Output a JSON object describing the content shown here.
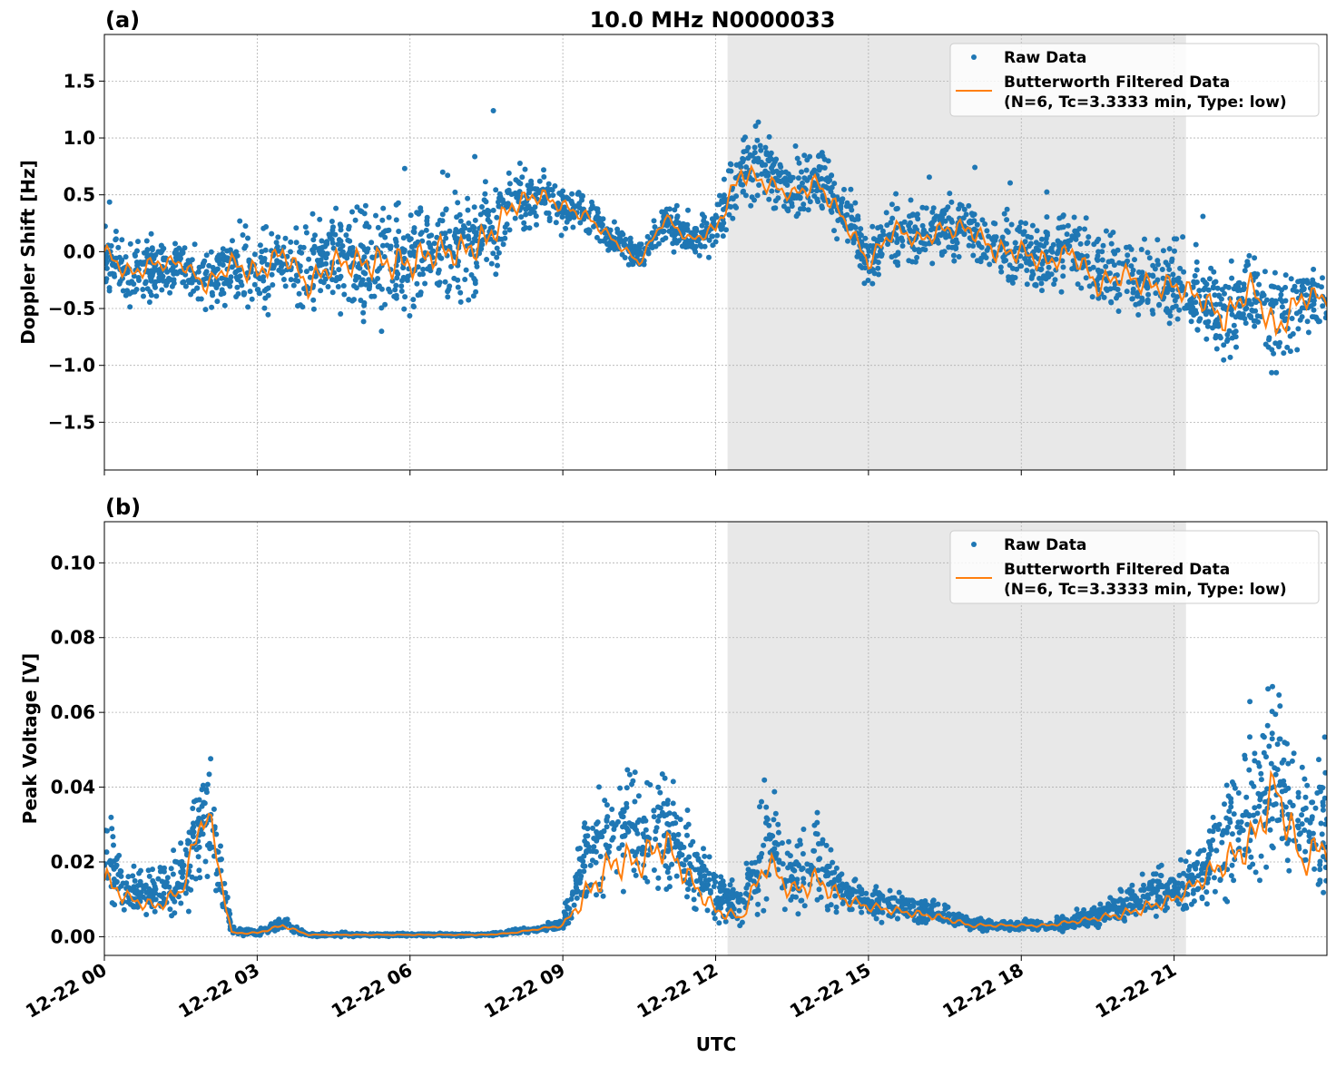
{
  "title": "10.0 MHz N0000033",
  "xlabel": "UTC",
  "x_ticks": [
    "12-22 00",
    "12-22 03",
    "12-22 06",
    "12-22 09",
    "12-22 12",
    "12-22 15",
    "12-22 18",
    "12-22 21"
  ],
  "x_range": [
    "12-22 00:00",
    "12-23 00:00"
  ],
  "shaded_interval": [
    "12-22 12:14",
    "12-22 21:14"
  ],
  "colors": {
    "raw": "#1f77b4",
    "filtered": "#ff7f0e",
    "shade": "#e8e8e8",
    "grid": "#b0b0b0"
  },
  "legend": {
    "raw": "Raw Data",
    "filtered_line1": "Butterworth Filtered Data",
    "filtered_line2": "(N=6, Tc=3.3333 min, Type: low)",
    "placement": "top-right"
  },
  "chart_data": [
    {
      "type": "scatter",
      "panel_label": "(a)",
      "ylabel": "Doppler Shift [Hz]",
      "ylim": [
        -1.92,
        1.91
      ],
      "y_ticks": [
        "−1.5",
        "−1.0",
        "−0.5",
        "0.0",
        "0.5",
        "1.0",
        "1.5"
      ],
      "y_tick_values": [
        -1.5,
        -1.0,
        -0.5,
        0.0,
        0.5,
        1.0,
        1.5
      ],
      "grid": true,
      "time": [
        "00:00",
        "00:30",
        "01:00",
        "01:30",
        "02:00",
        "02:30",
        "03:00",
        "03:30",
        "04:00",
        "04:30",
        "05:00",
        "05:30",
        "06:00",
        "06:30",
        "07:00",
        "07:30",
        "08:00",
        "08:30",
        "09:00",
        "09:30",
        "10:00",
        "10:30",
        "11:00",
        "11:30",
        "12:00",
        "12:30",
        "13:00",
        "13:30",
        "14:00",
        "14:30",
        "15:00",
        "15:30",
        "16:00",
        "16:30",
        "17:00",
        "17:30",
        "18:00",
        "18:30",
        "19:00",
        "19:30",
        "20:00",
        "20:30",
        "21:00",
        "21:30",
        "22:00",
        "22:30",
        "23:00",
        "23:30",
        "24:00"
      ],
      "series": [
        {
          "name": "Butterworth Filtered Data",
          "kind": "line",
          "values": [
            0.0,
            -0.2,
            -0.1,
            -0.1,
            -0.3,
            -0.1,
            -0.2,
            0.0,
            -0.3,
            -0.1,
            -0.1,
            -0.1,
            -0.1,
            0.0,
            0.0,
            0.1,
            0.4,
            0.5,
            0.4,
            0.3,
            0.1,
            -0.1,
            0.3,
            0.1,
            0.2,
            0.7,
            0.6,
            0.5,
            0.6,
            0.3,
            -0.1,
            0.2,
            0.1,
            0.2,
            0.2,
            0.0,
            0.0,
            -0.1,
            0.0,
            -0.3,
            -0.2,
            -0.3,
            -0.3,
            -0.4,
            -0.6,
            -0.3,
            -0.7,
            -0.4,
            -0.4
          ]
        },
        {
          "name": "Raw Data",
          "kind": "scatter-band",
          "low": [
            -0.4,
            -0.6,
            -0.5,
            -0.4,
            -0.6,
            -0.5,
            -0.8,
            -0.5,
            -0.7,
            -0.6,
            -0.7,
            -0.8,
            -0.8,
            -0.7,
            -0.6,
            -0.6,
            0.0,
            0.1,
            0.1,
            0.1,
            -0.1,
            -0.2,
            0.0,
            -0.1,
            -0.1,
            0.3,
            0.3,
            0.2,
            0.2,
            0.0,
            -0.4,
            -0.2,
            -0.2,
            -0.2,
            -0.2,
            -0.4,
            -0.4,
            -0.5,
            -0.4,
            -0.7,
            -0.6,
            -0.8,
            -0.8,
            -0.9,
            -1.2,
            -0.9,
            -1.3,
            -0.9,
            -0.8
          ],
          "high": [
            0.3,
            0.2,
            0.2,
            0.15,
            0.1,
            0.3,
            0.3,
            0.3,
            0.4,
            0.5,
            0.5,
            0.6,
            0.6,
            0.7,
            0.7,
            0.8,
            0.9,
            0.9,
            0.7,
            0.6,
            0.3,
            0.1,
            0.5,
            0.3,
            0.5,
            1.2,
            1.1,
            0.8,
            1.1,
            0.7,
            0.3,
            0.6,
            0.5,
            0.6,
            0.6,
            0.5,
            0.5,
            0.4,
            0.5,
            0.3,
            0.3,
            0.2,
            0.2,
            0.1,
            0.0,
            0.2,
            0.0,
            0.1,
            0.0
          ]
        }
      ]
    },
    {
      "type": "scatter",
      "panel_label": "(b)",
      "ylabel": "Peak Voltage [V]",
      "ylim": [
        -0.005,
        0.111
      ],
      "y_ticks": [
        "0.00",
        "0.02",
        "0.04",
        "0.06",
        "0.08",
        "0.10"
      ],
      "y_tick_values": [
        0.0,
        0.02,
        0.04,
        0.06,
        0.08,
        0.1
      ],
      "grid": true,
      "time": [
        "00:00",
        "00:30",
        "01:00",
        "01:30",
        "02:00",
        "02:30",
        "03:00",
        "03:30",
        "04:00",
        "04:30",
        "05:00",
        "05:30",
        "06:00",
        "06:30",
        "07:00",
        "07:30",
        "08:00",
        "08:30",
        "09:00",
        "09:30",
        "10:00",
        "10:30",
        "11:00",
        "11:30",
        "12:00",
        "12:30",
        "13:00",
        "13:30",
        "14:00",
        "14:30",
        "15:00",
        "15:30",
        "16:00",
        "16:30",
        "17:00",
        "17:30",
        "18:00",
        "18:30",
        "19:00",
        "19:30",
        "20:00",
        "20:30",
        "21:00",
        "21:30",
        "22:00",
        "22:30",
        "23:00",
        "23:30",
        "24:00"
      ],
      "series": [
        {
          "name": "Butterworth Filtered Data",
          "kind": "line",
          "values": [
            0.015,
            0.01,
            0.008,
            0.012,
            0.035,
            0.001,
            0.001,
            0.003,
            0.0005,
            0.0005,
            0.0005,
            0.0005,
            0.0005,
            0.0005,
            0.0005,
            0.0005,
            0.001,
            0.002,
            0.003,
            0.012,
            0.02,
            0.02,
            0.025,
            0.015,
            0.007,
            0.005,
            0.02,
            0.012,
            0.015,
            0.01,
            0.008,
            0.007,
            0.006,
            0.005,
            0.003,
            0.003,
            0.003,
            0.003,
            0.004,
            0.005,
            0.006,
            0.008,
            0.01,
            0.015,
            0.02,
            0.025,
            0.04,
            0.02,
            0.025
          ]
        },
        {
          "name": "Raw Data",
          "kind": "scatter-band",
          "low": [
            0.003,
            0.003,
            0.003,
            0.004,
            0.01,
            0.0,
            0.0,
            0.001,
            0,
            0,
            0,
            0,
            0,
            0,
            0,
            0,
            0.0005,
            0.001,
            0.001,
            0.004,
            0.005,
            0.005,
            0.006,
            0.004,
            0.002,
            0.002,
            0.005,
            0.004,
            0.004,
            0.003,
            0.003,
            0.003,
            0.002,
            0.002,
            0.001,
            0.001,
            0.001,
            0.001,
            0.001,
            0.002,
            0.002,
            0.003,
            0.004,
            0.005,
            0.006,
            0.008,
            0.01,
            0.006,
            0.006
          ],
          "high": [
            0.04,
            0.02,
            0.02,
            0.025,
            0.06,
            0.003,
            0.002,
            0.006,
            0.001,
            0.001,
            0.001,
            0.001,
            0.001,
            0.001,
            0.001,
            0.001,
            0.002,
            0.003,
            0.006,
            0.04,
            0.05,
            0.05,
            0.055,
            0.035,
            0.02,
            0.015,
            0.045,
            0.03,
            0.04,
            0.02,
            0.015,
            0.014,
            0.012,
            0.01,
            0.006,
            0.005,
            0.005,
            0.005,
            0.007,
            0.01,
            0.015,
            0.02,
            0.02,
            0.03,
            0.045,
            0.06,
            0.08,
            0.05,
            0.05
          ]
        }
      ]
    }
  ]
}
